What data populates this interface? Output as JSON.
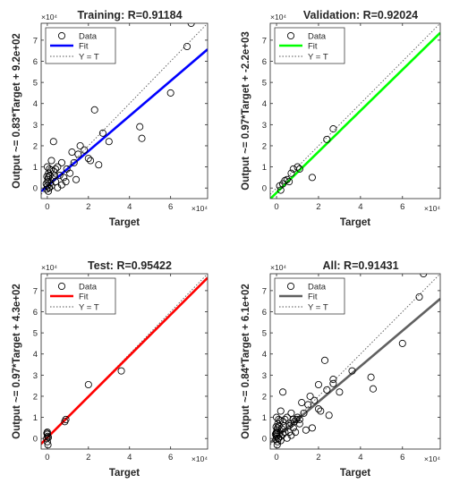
{
  "chart_data": [
    {
      "type": "scatter",
      "title": "Training: R=0.91184",
      "xlabel": "Target",
      "ylabel": "Output ~= 0.83*Target + 9.2e+02",
      "xlim": [
        -3000,
        78000
      ],
      "ylim": [
        -5000,
        78000
      ],
      "axis_exponent": "×10⁴",
      "x_ticks": [
        0,
        20000,
        40000,
        60000
      ],
      "x_tick_labels": [
        "0",
        "2",
        "4",
        "6"
      ],
      "y_ticks": [
        0,
        10000,
        20000,
        30000,
        40000,
        50000,
        60000,
        70000
      ],
      "y_tick_labels": [
        "0",
        "1",
        "2",
        "3",
        "4",
        "5",
        "6",
        "7"
      ],
      "fit": {
        "slope": 0.83,
        "intercept": 920,
        "color": "#0000ff"
      },
      "legend": {
        "placement": "top-left",
        "entries": [
          "Data",
          "Fit",
          "Y = T"
        ]
      },
      "points": [
        [
          70000,
          78000
        ],
        [
          68000,
          67000
        ],
        [
          60000,
          45000
        ],
        [
          45000,
          29000
        ],
        [
          46000,
          23500
        ],
        [
          23000,
          37000
        ],
        [
          27000,
          26000
        ],
        [
          30000,
          22000
        ],
        [
          25000,
          11000
        ],
        [
          16000,
          20000
        ],
        [
          18000,
          18000
        ],
        [
          20000,
          14000
        ],
        [
          21000,
          13000
        ],
        [
          15000,
          16000
        ],
        [
          12000,
          17000
        ],
        [
          13000,
          12000
        ],
        [
          14000,
          4000
        ],
        [
          11000,
          7000
        ],
        [
          9000,
          3000
        ],
        [
          7000,
          12000
        ],
        [
          5000,
          10000
        ],
        [
          4000,
          9000
        ],
        [
          6000,
          6000
        ],
        [
          8000,
          5000
        ],
        [
          3000,
          22000
        ],
        [
          2000,
          13000
        ],
        [
          3000,
          8000
        ],
        [
          1000,
          9000
        ],
        [
          0,
          10000
        ],
        [
          500,
          5000
        ],
        [
          200,
          3000
        ],
        [
          -500,
          2000
        ],
        [
          800,
          0
        ],
        [
          0,
          1000
        ],
        [
          1500,
          2500
        ],
        [
          -300,
          -500
        ],
        [
          300,
          4000
        ],
        [
          1200,
          6000
        ],
        [
          2000,
          1000
        ],
        [
          4000,
          3000
        ],
        [
          600,
          7000
        ],
        [
          -200,
          5500
        ],
        [
          2500,
          4500
        ],
        [
          1800,
          8500
        ],
        [
          1000,
          200
        ],
        [
          3500,
          6000
        ],
        [
          5000,
          200
        ],
        [
          7000,
          1500
        ],
        [
          500,
          -1500
        ],
        [
          9500,
          9000
        ]
      ]
    },
    {
      "type": "scatter",
      "title": "Validation: R=0.92024",
      "xlabel": "Target",
      "ylabel": "Output ~= 0.97*Target + -2.2e+03",
      "xlim": [
        -3000,
        78000
      ],
      "ylim": [
        -5000,
        78000
      ],
      "axis_exponent": "×10⁴",
      "x_ticks": [
        0,
        20000,
        40000,
        60000
      ],
      "x_tick_labels": [
        "0",
        "2",
        "4",
        "6"
      ],
      "y_ticks": [
        0,
        10000,
        20000,
        30000,
        40000,
        50000,
        60000,
        70000
      ],
      "y_tick_labels": [
        "0",
        "1",
        "2",
        "3",
        "4",
        "5",
        "6",
        "7"
      ],
      "fit": {
        "slope": 0.97,
        "intercept": -2200,
        "color": "#00ff00"
      },
      "legend": {
        "placement": "top-left",
        "entries": [
          "Data",
          "Fit",
          "Y = T"
        ]
      },
      "points": [
        [
          27000,
          28000
        ],
        [
          24000,
          23000
        ],
        [
          17000,
          5000
        ],
        [
          11000,
          9000
        ],
        [
          10000,
          10000
        ],
        [
          8000,
          9000
        ],
        [
          6000,
          3000
        ],
        [
          5000,
          4000
        ],
        [
          3000,
          2000
        ],
        [
          2000,
          -1000
        ],
        [
          1500,
          1000
        ],
        [
          4000,
          3500
        ],
        [
          7000,
          7000
        ]
      ]
    },
    {
      "type": "scatter",
      "title": "Test: R=0.95422",
      "xlabel": "Target",
      "ylabel": "Output ~= 0.97*Target + 4.3e+02",
      "xlim": [
        -3000,
        78000
      ],
      "ylim": [
        -5000,
        78000
      ],
      "axis_exponent": "×10⁴",
      "x_ticks": [
        0,
        20000,
        40000,
        60000
      ],
      "x_tick_labels": [
        "0",
        "2",
        "4",
        "6"
      ],
      "y_ticks": [
        0,
        10000,
        20000,
        30000,
        40000,
        50000,
        60000,
        70000
      ],
      "y_tick_labels": [
        "0",
        "1",
        "2",
        "3",
        "4",
        "5",
        "6",
        "7"
      ],
      "fit": {
        "slope": 0.97,
        "intercept": 430,
        "color": "#ff0000"
      },
      "legend": {
        "placement": "top-left",
        "entries": [
          "Data",
          "Fit",
          "Y = T"
        ]
      },
      "points": [
        [
          36000,
          32000
        ],
        [
          20000,
          25500
        ],
        [
          9000,
          9000
        ],
        [
          8500,
          8000
        ],
        [
          0,
          3000
        ],
        [
          0,
          2000
        ],
        [
          200,
          1000
        ],
        [
          -300,
          0
        ],
        [
          500,
          500
        ],
        [
          0,
          -1500
        ],
        [
          300,
          -3000
        ],
        [
          -200,
          2500
        ]
      ]
    },
    {
      "type": "scatter",
      "title": "All: R=0.91431",
      "xlabel": "Target",
      "ylabel": "Output ~= 0.84*Target + 6.1e+02",
      "xlim": [
        -3000,
        78000
      ],
      "ylim": [
        -5000,
        78000
      ],
      "axis_exponent": "×10⁴",
      "x_ticks": [
        0,
        20000,
        40000,
        60000
      ],
      "x_tick_labels": [
        "0",
        "2",
        "4",
        "6"
      ],
      "y_ticks": [
        0,
        10000,
        20000,
        30000,
        40000,
        50000,
        60000,
        70000
      ],
      "y_tick_labels": [
        "0",
        "1",
        "2",
        "3",
        "4",
        "5",
        "6",
        "7"
      ],
      "fit": {
        "slope": 0.84,
        "intercept": 610,
        "color": "#606060"
      },
      "legend": {
        "placement": "top-left",
        "entries": [
          "Data",
          "Fit",
          "Y = T"
        ]
      },
      "points": [
        [
          70000,
          78000
        ],
        [
          68000,
          67000
        ],
        [
          60000,
          45000
        ],
        [
          45000,
          29000
        ],
        [
          46000,
          23500
        ],
        [
          23000,
          37000
        ],
        [
          27000,
          26000
        ],
        [
          30000,
          22000
        ],
        [
          25000,
          11000
        ],
        [
          16000,
          20000
        ],
        [
          18000,
          18000
        ],
        [
          20000,
          14000
        ],
        [
          21000,
          13000
        ],
        [
          15000,
          16000
        ],
        [
          12000,
          17000
        ],
        [
          13000,
          12000
        ],
        [
          14000,
          4000
        ],
        [
          11000,
          7000
        ],
        [
          9000,
          3000
        ],
        [
          7000,
          12000
        ],
        [
          5000,
          10000
        ],
        [
          4000,
          9000
        ],
        [
          6000,
          6000
        ],
        [
          8000,
          5000
        ],
        [
          3000,
          22000
        ],
        [
          2000,
          13000
        ],
        [
          3000,
          8000
        ],
        [
          1000,
          9000
        ],
        [
          0,
          10000
        ],
        [
          500,
          5000
        ],
        [
          200,
          3000
        ],
        [
          -500,
          2000
        ],
        [
          800,
          0
        ],
        [
          0,
          1000
        ],
        [
          1500,
          2500
        ],
        [
          -300,
          -500
        ],
        [
          300,
          4000
        ],
        [
          1200,
          6000
        ],
        [
          2000,
          1000
        ],
        [
          4000,
          3000
        ],
        [
          600,
          7000
        ],
        [
          -200,
          5500
        ],
        [
          2500,
          4500
        ],
        [
          1800,
          8500
        ],
        [
          1000,
          200
        ],
        [
          3500,
          6000
        ],
        [
          5000,
          200
        ],
        [
          7000,
          1500
        ],
        [
          500,
          -1500
        ],
        [
          9500,
          9000
        ],
        [
          27000,
          28000
        ],
        [
          24000,
          23000
        ],
        [
          17000,
          5000
        ],
        [
          11000,
          9000
        ],
        [
          10000,
          10000
        ],
        [
          8000,
          9000
        ],
        [
          6000,
          3000
        ],
        [
          3000,
          2000
        ],
        [
          2000,
          -1000
        ],
        [
          7000,
          7000
        ],
        [
          36000,
          32000
        ],
        [
          20000,
          25500
        ],
        [
          8500,
          8000
        ],
        [
          0,
          3000
        ],
        [
          0,
          2000
        ],
        [
          300,
          -3000
        ],
        [
          -200,
          2500
        ]
      ]
    }
  ]
}
